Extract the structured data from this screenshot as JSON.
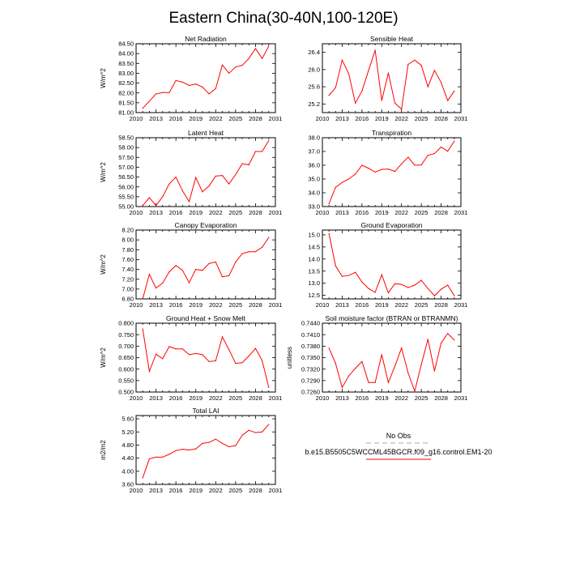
{
  "figure_title": "Eastern China(30-40N,100-120E)",
  "colors": {
    "model": "#ff0000",
    "obs": "#aaaaaa",
    "axis": "#000000"
  },
  "legend": {
    "obs_label": "No Obs",
    "model_label": "b.e15.B5505C5WCCML45BGCR.f09_g16.control.EM1-20"
  },
  "chart_data": [
    {
      "type": "line",
      "title": "Net Radiation",
      "ylabel": "W/m^2",
      "xlim": [
        2010,
        2031
      ],
      "ylim": [
        81.0,
        84.5
      ],
      "xticks": [
        "2010",
        "2013",
        "2016",
        "2019",
        "2022",
        "2025",
        "2028",
        "2031"
      ],
      "yticks": [
        "81.00",
        "81.50",
        "82.00",
        "82.50",
        "83.00",
        "83.50",
        "84.00",
        "84.50"
      ],
      "series": [
        {
          "name": "model",
          "x": [
            2011,
            2012,
            2013,
            2014,
            2015,
            2016,
            2017,
            2018,
            2019,
            2020,
            2021,
            2022,
            2023,
            2024,
            2025,
            2026,
            2027,
            2028,
            2029,
            2030
          ],
          "values": [
            81.22,
            81.58,
            81.95,
            82.02,
            82.02,
            82.63,
            82.55,
            82.38,
            82.45,
            82.3,
            81.95,
            82.22,
            83.42,
            83.0,
            83.32,
            83.4,
            83.75,
            84.25,
            83.75,
            84.38
          ]
        }
      ]
    },
    {
      "type": "line",
      "title": "Sensible Heat",
      "ylabel": "",
      "xlim": [
        2010,
        2031
      ],
      "ylim": [
        25.0,
        26.6
      ],
      "xticks": [
        "2010",
        "2013",
        "2016",
        "2019",
        "2022",
        "2025",
        "2028",
        "2031"
      ],
      "yticks": [
        "25.2",
        "25.6",
        "26.0",
        "26.4"
      ],
      "series": [
        {
          "name": "model",
          "x": [
            2011,
            2012,
            2013,
            2014,
            2015,
            2016,
            2017,
            2018,
            2019,
            2020,
            2021,
            2022,
            2023,
            2024,
            2025,
            2026,
            2027,
            2028,
            2029,
            2030
          ],
          "values": [
            25.4,
            25.58,
            26.22,
            25.9,
            25.22,
            25.5,
            25.98,
            26.45,
            25.28,
            25.92,
            25.22,
            25.08,
            26.12,
            26.22,
            26.1,
            25.6,
            25.98,
            25.7,
            25.28,
            25.5
          ]
        }
      ]
    },
    {
      "type": "line",
      "title": "Latent Heat",
      "ylabel": "W/m^2",
      "xlim": [
        2010,
        2031
      ],
      "ylim": [
        55.0,
        58.5
      ],
      "xticks": [
        "2010",
        "2013",
        "2016",
        "2019",
        "2022",
        "2025",
        "2028",
        "2031"
      ],
      "yticks": [
        "55.00",
        "55.50",
        "56.00",
        "56.50",
        "57.00",
        "57.50",
        "58.00",
        "58.50"
      ],
      "series": [
        {
          "name": "model",
          "x": [
            2011,
            2012,
            2013,
            2014,
            2015,
            2016,
            2017,
            2018,
            2019,
            2020,
            2021,
            2022,
            2023,
            2024,
            2025,
            2026,
            2027,
            2028,
            2029,
            2030
          ],
          "values": [
            55.05,
            55.45,
            55.05,
            55.5,
            56.15,
            56.5,
            55.8,
            55.25,
            56.48,
            55.75,
            56.05,
            56.55,
            56.58,
            56.15,
            56.62,
            57.18,
            57.12,
            57.8,
            57.8,
            58.35
          ]
        }
      ]
    },
    {
      "type": "line",
      "title": "Transpiration",
      "ylabel": "",
      "xlim": [
        2010,
        2031
      ],
      "ylim": [
        33.0,
        38.0
      ],
      "xticks": [
        "2010",
        "2013",
        "2016",
        "2019",
        "2022",
        "2025",
        "2028",
        "2031"
      ],
      "yticks": [
        "33.0",
        "34.0",
        "35.0",
        "36.0",
        "37.0",
        "38.0"
      ],
      "series": [
        {
          "name": "model",
          "x": [
            2011,
            2012,
            2013,
            2014,
            2015,
            2016,
            2017,
            2018,
            2019,
            2020,
            2021,
            2022,
            2023,
            2024,
            2025,
            2026,
            2027,
            2028,
            2029,
            2030
          ],
          "values": [
            33.2,
            34.4,
            34.75,
            35.0,
            35.35,
            36.0,
            35.78,
            35.5,
            35.7,
            35.72,
            35.55,
            36.1,
            36.58,
            36.0,
            36.02,
            36.72,
            36.85,
            37.32,
            37.02,
            37.75
          ]
        }
      ]
    },
    {
      "type": "line",
      "title": "Canopy Evaporation",
      "ylabel": "W/m^2",
      "xlim": [
        2010,
        2031
      ],
      "ylim": [
        6.8,
        8.2
      ],
      "xticks": [
        "2010",
        "2013",
        "2016",
        "2019",
        "2022",
        "2025",
        "2028",
        "2031"
      ],
      "yticks": [
        "6.80",
        "7.00",
        "7.20",
        "7.40",
        "7.60",
        "7.80",
        "8.00",
        "8.20"
      ],
      "series": [
        {
          "name": "model",
          "x": [
            2011,
            2012,
            2013,
            2014,
            2015,
            2016,
            2017,
            2018,
            2019,
            2020,
            2021,
            2022,
            2023,
            2024,
            2025,
            2026,
            2027,
            2028,
            2029,
            2030
          ],
          "values": [
            6.8,
            7.3,
            7.02,
            7.12,
            7.35,
            7.48,
            7.38,
            7.13,
            7.4,
            7.38,
            7.52,
            7.55,
            7.25,
            7.27,
            7.55,
            7.72,
            7.76,
            7.76,
            7.85,
            8.05
          ]
        }
      ]
    },
    {
      "type": "line",
      "title": "Ground Evaporation",
      "ylabel": "",
      "xlim": [
        2010,
        2031
      ],
      "ylim": [
        12.35,
        15.2
      ],
      "xticks": [
        "2010",
        "2013",
        "2016",
        "2019",
        "2022",
        "2025",
        "2028",
        "2031"
      ],
      "yticks": [
        "12.5",
        "13.0",
        "13.5",
        "14.0",
        "14.5",
        "15.0"
      ],
      "series": [
        {
          "name": "model",
          "x": [
            2011,
            2012,
            2013,
            2014,
            2015,
            2016,
            2017,
            2018,
            2019,
            2020,
            2021,
            2022,
            2023,
            2024,
            2025,
            2026,
            2027,
            2028,
            2029,
            2030
          ],
          "values": [
            15.05,
            13.72,
            13.28,
            13.32,
            13.45,
            13.05,
            12.78,
            12.62,
            13.35,
            12.6,
            12.98,
            12.95,
            12.82,
            12.92,
            13.12,
            12.78,
            12.48,
            12.75,
            12.92,
            12.48
          ]
        }
      ]
    },
    {
      "type": "line",
      "title": "Ground Heat + Snow Melt",
      "ylabel": "W/m^2",
      "xlim": [
        2010,
        2031
      ],
      "ylim": [
        0.5,
        0.8
      ],
      "xticks": [
        "2010",
        "2013",
        "2016",
        "2019",
        "2022",
        "2025",
        "2028",
        "2031"
      ],
      "yticks": [
        "0.500",
        "0.550",
        "0.600",
        "0.650",
        "0.700",
        "0.750",
        "0.800"
      ],
      "series": [
        {
          "name": "model",
          "x": [
            2011,
            2012,
            2013,
            2014,
            2015,
            2016,
            2017,
            2018,
            2019,
            2020,
            2021,
            2022,
            2023,
            2024,
            2025,
            2026,
            2027,
            2028,
            2029,
            2030
          ],
          "values": [
            0.775,
            0.59,
            0.665,
            0.645,
            0.698,
            0.688,
            0.688,
            0.663,
            0.668,
            0.663,
            0.633,
            0.636,
            0.74,
            0.685,
            0.625,
            0.628,
            0.657,
            0.69,
            0.637,
            0.52
          ]
        }
      ]
    },
    {
      "type": "line",
      "title": "Soil moisture factor (BTRAN or BTRANMN)",
      "ylabel": "unitless",
      "xlim": [
        2010,
        2031
      ],
      "ylim": [
        0.726,
        0.744
      ],
      "xticks": [
        "2010",
        "2013",
        "2016",
        "2019",
        "2022",
        "2025",
        "2028",
        "2031"
      ],
      "yticks": [
        "0.7260",
        "0.7290",
        "0.7320",
        "0.7350",
        "0.7380",
        "0.7410",
        "0.7440"
      ],
      "series": [
        {
          "name": "model",
          "x": [
            2011,
            2012,
            2013,
            2014,
            2015,
            2016,
            2017,
            2018,
            2019,
            2020,
            2021,
            2022,
            2023,
            2024,
            2025,
            2026,
            2027,
            2028,
            2029,
            2030
          ],
          "values": [
            0.7375,
            0.7335,
            0.7272,
            0.7302,
            0.7322,
            0.734,
            0.7285,
            0.7285,
            0.7358,
            0.7285,
            0.7328,
            0.7375,
            0.731,
            0.7262,
            0.7332,
            0.7398,
            0.7315,
            0.7388,
            0.7413,
            0.7396
          ]
        }
      ]
    },
    {
      "type": "line",
      "title": "Total LAI",
      "ylabel": "m2/m2",
      "xlim": [
        2010,
        2031
      ],
      "ylim": [
        3.6,
        5.7
      ],
      "xticks": [
        "2010",
        "2013",
        "2016",
        "2019",
        "2022",
        "2025",
        "2028",
        "2031"
      ],
      "yticks": [
        "3.60",
        "4.00",
        "4.40",
        "4.80",
        "5.20",
        "5.60"
      ],
      "series": [
        {
          "name": "model",
          "x": [
            2011,
            2012,
            2013,
            2014,
            2015,
            2016,
            2017,
            2018,
            2019,
            2020,
            2021,
            2022,
            2023,
            2024,
            2025,
            2026,
            2027,
            2028,
            2029,
            2030
          ],
          "values": [
            3.8,
            4.38,
            4.43,
            4.43,
            4.52,
            4.63,
            4.67,
            4.65,
            4.68,
            4.85,
            4.88,
            4.98,
            4.85,
            4.75,
            4.78,
            5.1,
            5.25,
            5.18,
            5.2,
            5.43
          ]
        }
      ]
    }
  ]
}
